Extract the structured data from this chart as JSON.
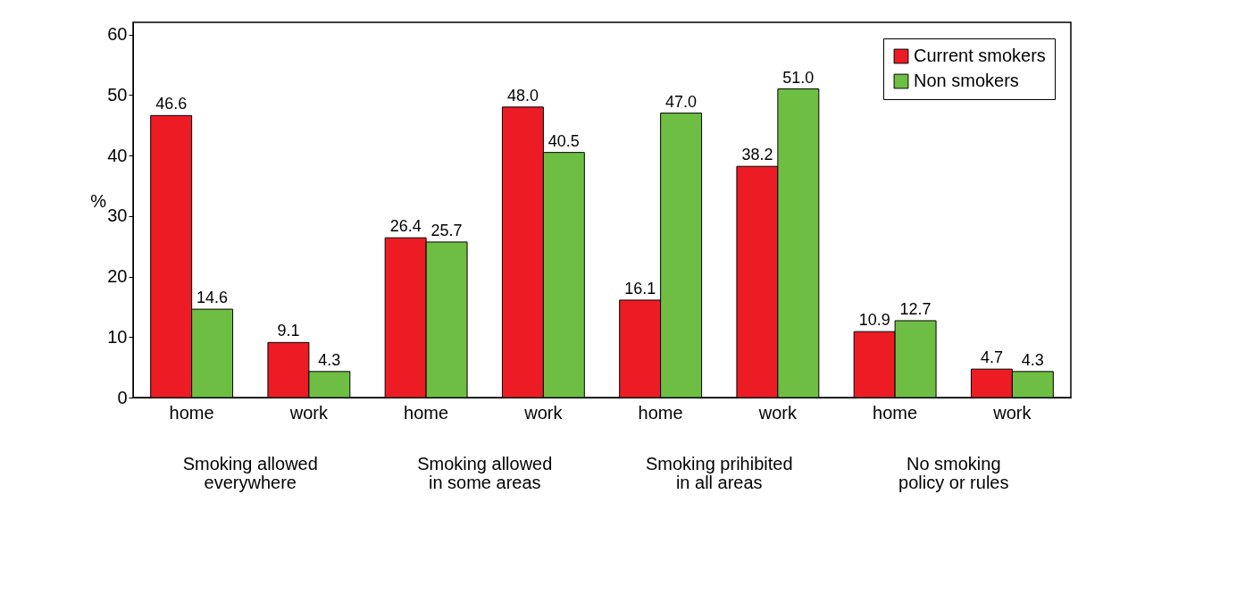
{
  "chart_data": {
    "type": "bar",
    "ylabel": "%",
    "categories": [
      "home",
      "work",
      "home",
      "work",
      "home",
      "work",
      "home",
      "work"
    ],
    "series": [
      {
        "name": "Current smokers",
        "color": "#ed1c24",
        "values": [
          46.6,
          9.1,
          26.4,
          48.0,
          16.1,
          38.2,
          10.9,
          4.7
        ],
        "value_labels": [
          "46.6",
          "9.1",
          "26.4",
          "48.0",
          "16.1",
          "38.2",
          "10.9",
          "4.7"
        ]
      },
      {
        "name": "Non smokers",
        "color": "#6fbe44",
        "values": [
          14.6,
          4.3,
          25.7,
          40.5,
          47.0,
          51.0,
          12.7,
          4.3
        ],
        "value_labels": [
          "14.6",
          "4.3",
          "25.7",
          "40.5",
          "47.0",
          "51.0",
          "12.7",
          "4.3"
        ]
      }
    ],
    "annotations": [
      "Smoking allowed everywhere",
      "Smoking allowed in some areas",
      "Smoking prihibited in all areas",
      "No smoking policy or rules"
    ],
    "ylim": [
      0,
      62
    ],
    "yticks": [
      0,
      10,
      20,
      30,
      40,
      50,
      60
    ],
    "legend": "top right",
    "grid": false
  }
}
